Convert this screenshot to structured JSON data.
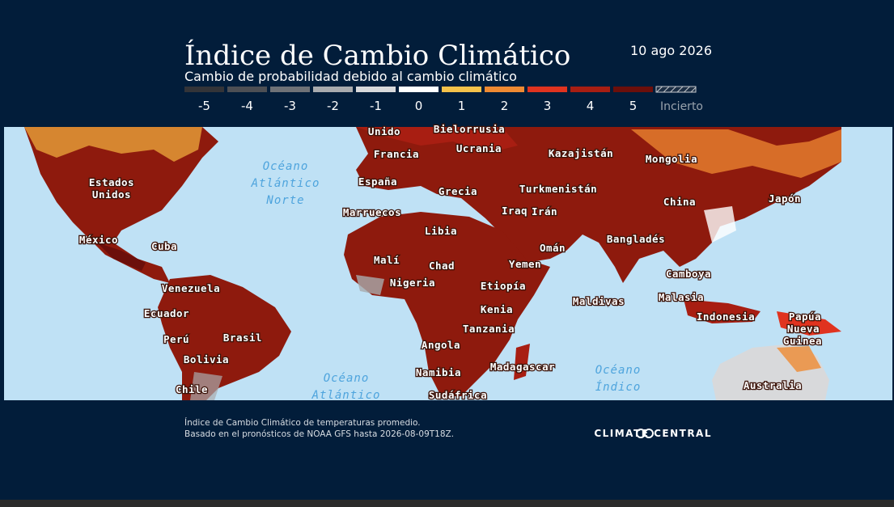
{
  "header": {
    "title": "Índice de Cambio Climático",
    "subtitle": "Cambio de probabilidad debido al cambio climático",
    "date": "10 ago 2026"
  },
  "legend": [
    {
      "label": "-5",
      "color": "#333438"
    },
    {
      "label": "-4",
      "color": "#4d4f54"
    },
    {
      "label": "-3",
      "color": "#6f7277"
    },
    {
      "label": "-2",
      "color": "#a9abae"
    },
    {
      "label": "-1",
      "color": "#d8d9db"
    },
    {
      "label": "0",
      "color": "#ffffff"
    },
    {
      "label": "1",
      "color": "#f5c24a"
    },
    {
      "label": "2",
      "color": "#ef8a32"
    },
    {
      "label": "3",
      "color": "#e0331f"
    },
    {
      "label": "4",
      "color": "#a81e12"
    },
    {
      "label": "5",
      "color": "#6c0f0b"
    },
    {
      "label": "Incierto",
      "color": "hatch"
    }
  ],
  "map": {
    "land_labels": [
      "Unido",
      "Bielorrusia",
      "Francia",
      "Ucrania",
      "Kazajistán",
      "Mongolia",
      "Estados",
      "Unidos",
      "España",
      "Grecia",
      "Turkmenistán",
      "China",
      "Japón",
      "Marruecos",
      "Iraq",
      "Irán",
      "Libia",
      "México",
      "Cuba",
      "Bangladés",
      "Omán",
      "Malí",
      "Chad",
      "Yemen",
      "Camboya",
      "Nigeria",
      "Etiopía",
      "Venezuela",
      "Maldivas",
      "Malasia",
      "Ecuador",
      "Kenia",
      "Indonesia",
      "Papúa",
      "Nueva",
      "Guinea",
      "Perú",
      "Brasil",
      "Tanzania",
      "Angola",
      "Bolivia",
      "Madagascar",
      "Namibia",
      "Australia",
      "Chile",
      "Sudáfrica"
    ],
    "ocean_labels": [
      "Océano",
      "Atlántico",
      "Norte",
      "Océano",
      "Atlántico",
      "Océano",
      "Índico"
    ]
  },
  "footer": {
    "note_lines": [
      "Índice de Cambio Climático de temperaturas promedio.",
      "Basado en el pronósticos de NOAA GFS hasta 2026-08-09T18Z."
    ],
    "brand": "CLIMATE CENTRAL"
  }
}
